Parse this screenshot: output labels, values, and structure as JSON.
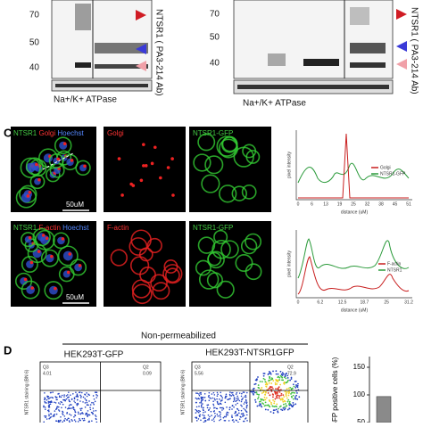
{
  "blot_left": {
    "markers": [
      "70",
      "50",
      "40"
    ],
    "antibody": "NTSR1 ( PA3-214 Ab)",
    "loading": "Na+/K+ ATPase"
  },
  "blot_right": {
    "markers": [
      "70",
      "50",
      "40"
    ],
    "antibody": "NTSR1 ( PA3-214 Ab)",
    "loading": "Na+/K+ ATPase"
  },
  "panel_c": {
    "label": "C",
    "row1": {
      "merge": [
        "NTSR1",
        "Golgi",
        "Hoechst"
      ],
      "single": "Golgi",
      "gfp": "NTSR1-GFP",
      "scale": "50uM"
    },
    "row2": {
      "merge": [
        "NTSR1",
        "F-actin",
        "Hoechst"
      ],
      "single": "F-actin",
      "gfp": "NTSR1-GFP",
      "scale": "50uM"
    },
    "plot1": {
      "ylabel": "pixel intensity",
      "xlabel": "distance (uM)",
      "xticks": [
        "0",
        "6",
        "13",
        "19",
        "25",
        "32",
        "38",
        "45",
        "51"
      ],
      "legend": [
        "Golgi",
        "NTSR1-GFP"
      ]
    },
    "plot2": {
      "ylabel": "pixel intensity",
      "xlabel": "distance (uM)",
      "xticks": [
        "0",
        "6.2",
        "12.5",
        "18.7",
        "25",
        "31.2"
      ],
      "legend": [
        "F-actin",
        "NTSR1"
      ]
    }
  },
  "panel_d": {
    "label": "D",
    "header": "Non-permeabilized",
    "flow1": {
      "title": "HEK293T-GFP",
      "ylabel": "NTSR1 staining (BN 6)",
      "q3": "Q3",
      "q3_value": "4.01",
      "q2": "Q2",
      "q2_value": "0.09"
    },
    "flow2": {
      "title": "HEK293T-NTSR1GFP",
      "ylabel": "NTSR1 staining (BN 6)",
      "q3": "Q3",
      "q3_value": "5.56",
      "q2": "Q2",
      "q2_value": "72.9"
    },
    "bar_chart": {
      "type": "bar",
      "ylabel": "GFP positive cells (%)",
      "values": [
        97
      ],
      "color": "#8a8a8a",
      "ylim": [
        0,
        150
      ],
      "yticks": [
        50,
        100,
        150
      ]
    }
  }
}
